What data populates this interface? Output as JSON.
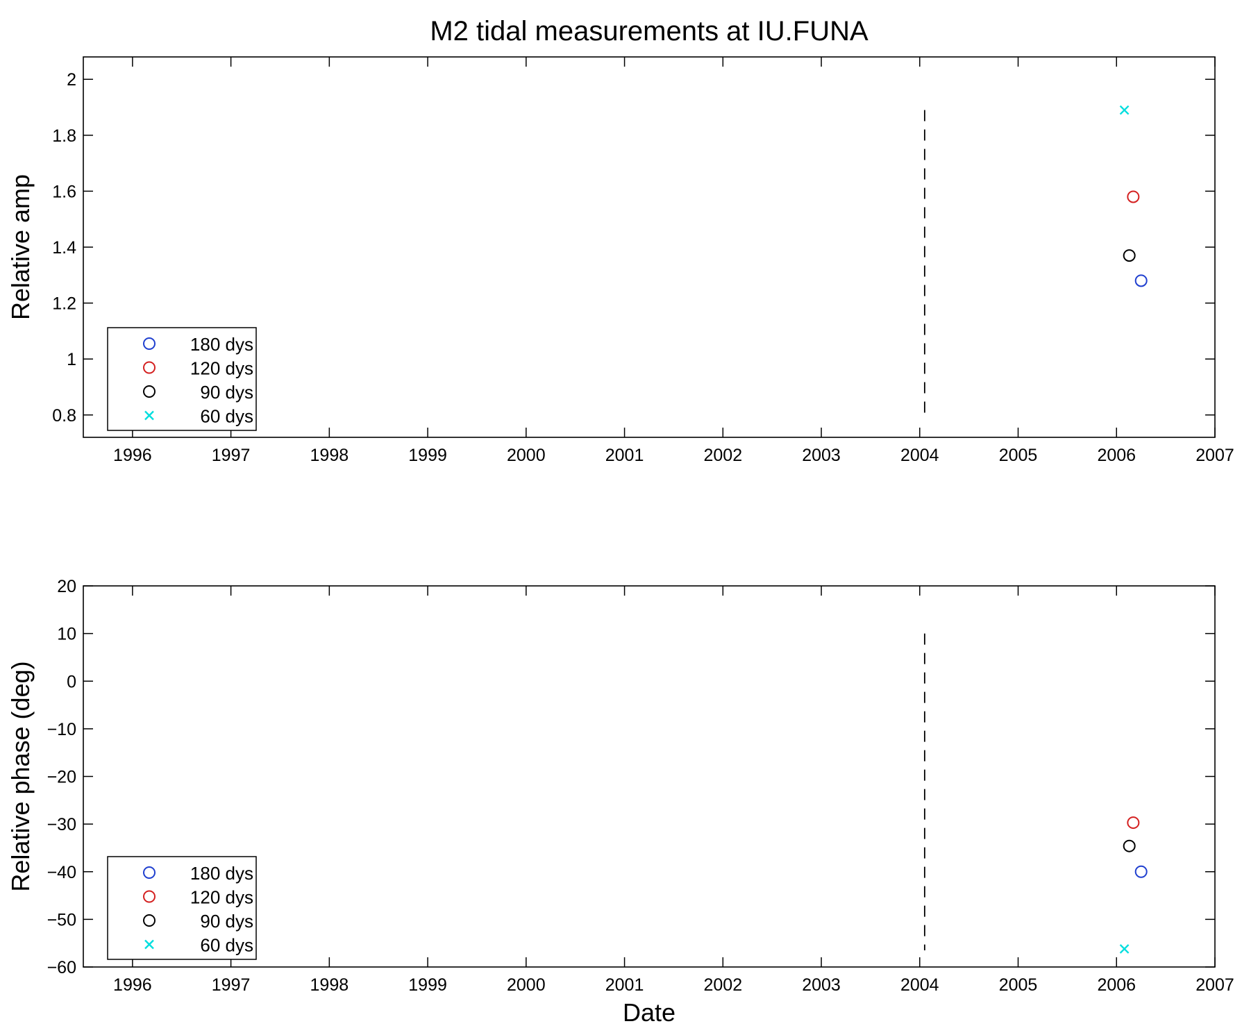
{
  "title": "M2 tidal measurements at IU.FUNA",
  "chart_data": [
    {
      "type": "scatter",
      "id": "amp",
      "ylabel": "Relative amp",
      "xlabel": "",
      "xlim": [
        1995.5,
        2007
      ],
      "ylim": [
        0.72,
        2.08
      ],
      "x_ticks": [
        "1996",
        "1997",
        "1998",
        "1999",
        "2000",
        "2001",
        "2002",
        "2003",
        "2004",
        "2005",
        "2006",
        "2007"
      ],
      "y_ticks": [
        "0.8",
        "1",
        "1.2",
        "1.4",
        "1.6",
        "1.8",
        "2"
      ],
      "grid": false,
      "legend_position": "lower-left",
      "vline": {
        "x": 2004.05,
        "y_range": [
          0.8,
          1.89
        ],
        "style": "dashed",
        "color": "#000000"
      },
      "series": [
        {
          "name": "180 dys",
          "marker": "circle",
          "color": "#1f3fcf",
          "points": [
            [
              2006.25,
              1.28
            ]
          ]
        },
        {
          "name": "120 dys",
          "marker": "circle",
          "color": "#d42020",
          "points": [
            [
              2006.17,
              1.58
            ]
          ]
        },
        {
          "name": "90 dys",
          "marker": "circle",
          "color": "#000000",
          "points": [
            [
              2006.13,
              1.37
            ]
          ]
        },
        {
          "name": "60 dys",
          "marker": "x",
          "color": "#00dede",
          "points": [
            [
              2006.08,
              1.89
            ]
          ]
        }
      ]
    },
    {
      "type": "scatter",
      "id": "phase",
      "ylabel": "Relative phase (deg)",
      "xlabel": "Date",
      "xlim": [
        1995.5,
        2007
      ],
      "ylim": [
        -60,
        20
      ],
      "x_ticks": [
        "1996",
        "1997",
        "1998",
        "1999",
        "2000",
        "2001",
        "2002",
        "2003",
        "2004",
        "2005",
        "2006",
        "2007"
      ],
      "y_ticks": [
        "−60",
        "−50",
        "−40",
        "−30",
        "−20",
        "−10",
        "0",
        "10",
        "20"
      ],
      "grid": false,
      "legend_position": "lower-left",
      "vline": {
        "x": 2004.05,
        "y_range": [
          -56.5,
          10
        ],
        "style": "dashed",
        "color": "#000000"
      },
      "series": [
        {
          "name": "180 dys",
          "marker": "circle",
          "color": "#1f3fcf",
          "points": [
            [
              2006.25,
              -40
            ]
          ]
        },
        {
          "name": "120 dys",
          "marker": "circle",
          "color": "#d42020",
          "points": [
            [
              2006.17,
              -29.7
            ]
          ]
        },
        {
          "name": "90 dys",
          "marker": "circle",
          "color": "#000000",
          "points": [
            [
              2006.13,
              -34.6
            ]
          ]
        },
        {
          "name": "60 dys",
          "marker": "x",
          "color": "#00dede",
          "points": [
            [
              2006.08,
              -56.2
            ]
          ]
        }
      ]
    }
  ]
}
